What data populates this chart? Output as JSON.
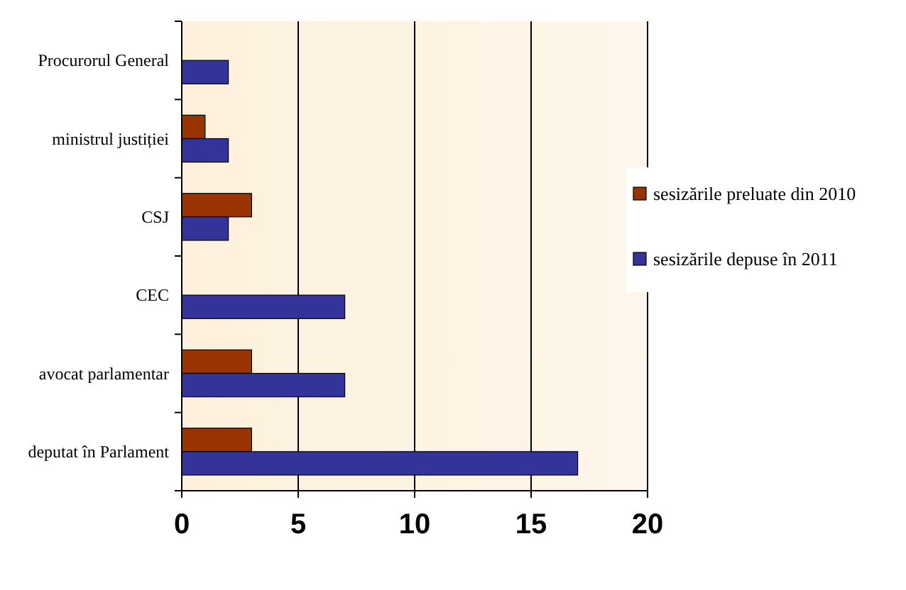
{
  "chart_data": {
    "type": "bar",
    "orientation": "horizontal",
    "categories": [
      "Procurorul General",
      "ministrul justiției",
      "CSJ",
      "CEC",
      "avocat parlamentar",
      "deputat în Parlament"
    ],
    "series": [
      {
        "name": "sesizările preluate din 2010",
        "color": "#993300",
        "values": [
          null,
          1,
          3,
          null,
          3,
          3
        ]
      },
      {
        "name": "sesizările depuse în 2011",
        "color": "#333399",
        "values": [
          2,
          2,
          2,
          7,
          7,
          17
        ]
      }
    ],
    "xlim": [
      0,
      20
    ],
    "xticks": [
      0,
      5,
      10,
      15,
      20
    ],
    "grid": "x",
    "legend": "right"
  }
}
